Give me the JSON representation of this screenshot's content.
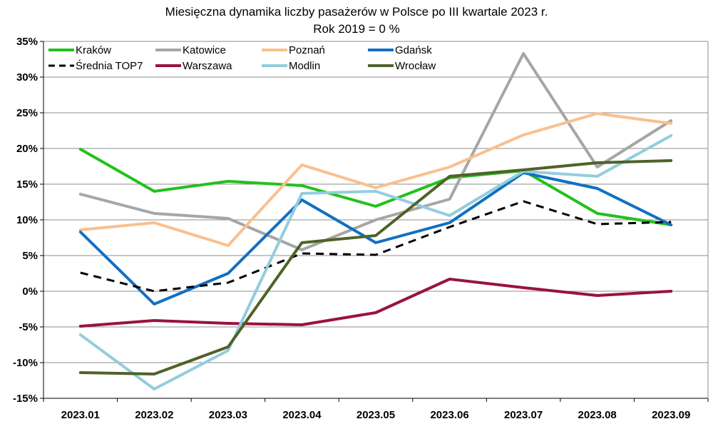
{
  "chart_data": {
    "type": "line",
    "title": "Miesięczna dynamika liczby pasażerów w Polsce po III kwartale 2023 r.",
    "subtitle": "Rok 2019 = 0 %",
    "categories": [
      "2023.01",
      "2023.02",
      "2023.03",
      "2023.04",
      "2023.05",
      "2023.06",
      "2023.07",
      "2023.08",
      "2023.09"
    ],
    "ylim": [
      -15,
      35
    ],
    "yticks": [
      35,
      30,
      25,
      20,
      15,
      10,
      5,
      0,
      -5,
      -10,
      -15
    ],
    "ytick_labels": [
      "35%",
      "30%",
      "25%",
      "20%",
      "15%",
      "10%",
      "5%",
      "0%",
      "-5%",
      "-10%",
      "-15%"
    ],
    "grid": "horizontal",
    "legend_position": "top",
    "series": [
      {
        "name": "Kraków",
        "color": "#22c11d",
        "dash": "solid",
        "values": [
          19.9,
          14.0,
          15.4,
          14.8,
          11.9,
          15.9,
          16.9,
          10.9,
          9.3
        ]
      },
      {
        "name": "Katowice",
        "color": "#a6a6a6",
        "dash": "solid",
        "values": [
          13.6,
          10.9,
          10.2,
          5.8,
          10.0,
          12.9,
          33.3,
          17.4,
          23.9
        ]
      },
      {
        "name": "Poznań",
        "color": "#f9c08e",
        "dash": "solid",
        "values": [
          8.6,
          9.6,
          6.4,
          17.7,
          14.5,
          17.4,
          21.9,
          24.9,
          23.5
        ]
      },
      {
        "name": "Gdańsk",
        "color": "#1170c1",
        "dash": "solid",
        "values": [
          8.3,
          -1.8,
          2.5,
          12.8,
          6.8,
          9.6,
          16.6,
          14.4,
          9.3
        ]
      },
      {
        "name": "Średnia TOP7",
        "color": "#000000",
        "dash": "dashed",
        "values": [
          2.6,
          0.0,
          1.2,
          5.3,
          5.1,
          9.0,
          12.6,
          9.4,
          9.7
        ]
      },
      {
        "name": "Warszawa",
        "color": "#99133f",
        "dash": "solid",
        "values": [
          -4.9,
          -4.1,
          -4.5,
          -4.7,
          -3.0,
          1.7,
          0.5,
          -0.6,
          0.0
        ]
      },
      {
        "name": "Modlin",
        "color": "#93cddd",
        "dash": "solid",
        "values": [
          -6.1,
          -13.7,
          -8.3,
          13.7,
          14.0,
          10.6,
          16.8,
          16.1,
          21.8
        ]
      },
      {
        "name": "Wrocław",
        "color": "#4f6228",
        "dash": "solid",
        "values": [
          -11.4,
          -11.6,
          -7.8,
          6.8,
          7.8,
          16.1,
          17.0,
          18.0,
          18.3
        ]
      }
    ]
  }
}
